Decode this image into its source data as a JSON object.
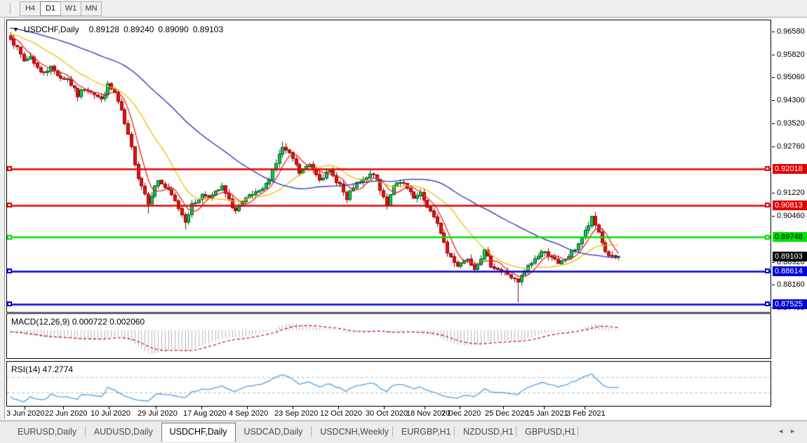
{
  "toolbar": {
    "timeframes": [
      {
        "label": "H4",
        "active": false
      },
      {
        "label": "D1",
        "active": true
      },
      {
        "label": "W1",
        "active": false
      },
      {
        "label": "MN",
        "active": false
      }
    ]
  },
  "chart": {
    "title_symbol": "USDCHF,Daily",
    "ohlc": {
      "open": "0.89128",
      "high": "0.89240",
      "low": "0.89090",
      "close": "0.89103"
    },
    "axis_ticks": [
      "0.96580",
      "0.95820",
      "0.95060",
      "0.94300",
      "0.93520",
      "0.92760",
      "0.91220",
      "0.90460",
      "0.88920",
      "0.88160",
      "0.87400"
    ],
    "hlines": [
      {
        "label": "0.92018",
        "color": "#e00000",
        "text_color": "#ffffff"
      },
      {
        "label": "0.90813",
        "color": "#e00000",
        "text_color": "#ffffff"
      },
      {
        "label": "0.89748",
        "color": "#00e400",
        "text_color": "#000000"
      },
      {
        "label": "0.88614",
        "color": "#0000d8",
        "text_color": "#ffffff"
      },
      {
        "label": "0.87525",
        "color": "#0000d8",
        "text_color": "#ffffff"
      }
    ],
    "bid_tag": {
      "label": "0.89103",
      "color": "#000000",
      "text_color": "#ffffff"
    },
    "dates": [
      "3 Jun 2020",
      "22 Jun 2020",
      "10 Jul 2020",
      "29 Jul 2020",
      "17 Aug 2020",
      "4 Sep 2020",
      "23 Sep 2020",
      "12 Oct 2020",
      "30 Oct 2020",
      "18 Nov 2020",
      "7 Dec 2020",
      "25 Dec 2020",
      "15 Jan 2021",
      "3 Feb 2021"
    ],
    "series_anchors": [
      [
        0,
        0.964
      ],
      [
        2,
        0.96
      ],
      [
        4,
        0.956
      ],
      [
        6,
        0.9575
      ],
      [
        9,
        0.952
      ],
      [
        12,
        0.9538
      ],
      [
        15,
        0.9505
      ],
      [
        17,
        0.95
      ],
      [
        20,
        0.9445
      ],
      [
        22,
        0.947
      ],
      [
        24,
        0.9462
      ],
      [
        27,
        0.943
      ],
      [
        29,
        0.9478
      ],
      [
        31,
        0.9455
      ],
      [
        33,
        0.939
      ],
      [
        36,
        0.927
      ],
      [
        38,
        0.9175
      ],
      [
        41,
        0.9092
      ],
      [
        44,
        0.9165
      ],
      [
        46,
        0.914
      ],
      [
        48,
        0.9112
      ],
      [
        50,
        0.9072
      ],
      [
        52,
        0.903
      ],
      [
        54,
        0.908
      ],
      [
        57,
        0.9115
      ],
      [
        60,
        0.9112
      ],
      [
        63,
        0.914
      ],
      [
        65,
        0.9095
      ],
      [
        67,
        0.9062
      ],
      [
        71,
        0.911
      ],
      [
        74,
        0.9122
      ],
      [
        76,
        0.9148
      ],
      [
        79,
        0.9222
      ],
      [
        81,
        0.9272
      ],
      [
        84,
        0.9235
      ],
      [
        86,
        0.9188
      ],
      [
        89,
        0.9215
      ],
      [
        92,
        0.9172
      ],
      [
        95,
        0.919
      ],
      [
        98,
        0.915
      ],
      [
        100,
        0.9096
      ],
      [
        102,
        0.9142
      ],
      [
        105,
        0.9162
      ],
      [
        108,
        0.9188
      ],
      [
        110,
        0.913
      ],
      [
        112,
        0.9086
      ],
      [
        114,
        0.915
      ],
      [
        117,
        0.915
      ],
      [
        120,
        0.9102
      ],
      [
        122,
        0.9116
      ],
      [
        125,
        0.906
      ],
      [
        128,
        0.8992
      ],
      [
        130,
        0.8922
      ],
      [
        133,
        0.8882
      ],
      [
        136,
        0.8906
      ],
      [
        138,
        0.8872
      ],
      [
        141,
        0.8926
      ],
      [
        143,
        0.8882
      ],
      [
        146,
        0.8862
      ],
      [
        148,
        0.8852
      ],
      [
        151,
        0.8822
      ],
      [
        153,
        0.8862
      ],
      [
        156,
        0.8902
      ],
      [
        158,
        0.8926
      ],
      [
        161,
        0.8912
      ],
      [
        163,
        0.8882
      ],
      [
        166,
        0.8912
      ],
      [
        168,
        0.8936
      ],
      [
        171,
        0.8992
      ],
      [
        173,
        0.9036
      ],
      [
        175,
        0.8992
      ],
      [
        177,
        0.8926
      ],
      [
        179,
        0.8906
      ],
      [
        181,
        0.891
      ]
    ],
    "wick_overrides": {
      "41": {
        "low": 0.9053
      },
      "52": {
        "low": 0.9
      },
      "81": {
        "high": 0.9292
      },
      "151": {
        "low": 0.8757
      },
      "173": {
        "high": 0.9046
      }
    },
    "colors": {
      "bull": "#00d150",
      "bull_border": "#00511e",
      "bear": "#ee0e0e",
      "bear_border": "#8f0000",
      "ma_fast": "#f02020",
      "ma_mid": "#e9bf00",
      "ma_slow": "#2a2ab0"
    }
  },
  "macd": {
    "label": "MACD(12,26,9) 0.000722 0.002060",
    "axis": [
      "0.004527",
      "0.00",
      "-0.009348"
    ],
    "histogram_color": "#b4b4b4",
    "signal_color": "#cc0000"
  },
  "rsi": {
    "label": "RSI(14) 47.2774",
    "axis": [
      "100",
      "70",
      "30",
      "0"
    ],
    "levels": [
      70,
      30
    ],
    "line_color": "#4aa0e8",
    "level_color": "#bdbdbd"
  },
  "tabs": {
    "items": [
      {
        "label": "EURUSD,Daily",
        "active": false
      },
      {
        "label": "AUDUSD,Daily",
        "active": false
      },
      {
        "label": "USDCHF,Daily",
        "active": true
      },
      {
        "label": "USDCAD,Daily",
        "active": false
      },
      {
        "label": "USDCNH,Weekly",
        "active": false
      },
      {
        "label": "EURGBP,H1",
        "active": false
      },
      {
        "label": "NZDUSD,H1",
        "active": false
      },
      {
        "label": "GBPUSD,H1",
        "active": false
      }
    ]
  }
}
